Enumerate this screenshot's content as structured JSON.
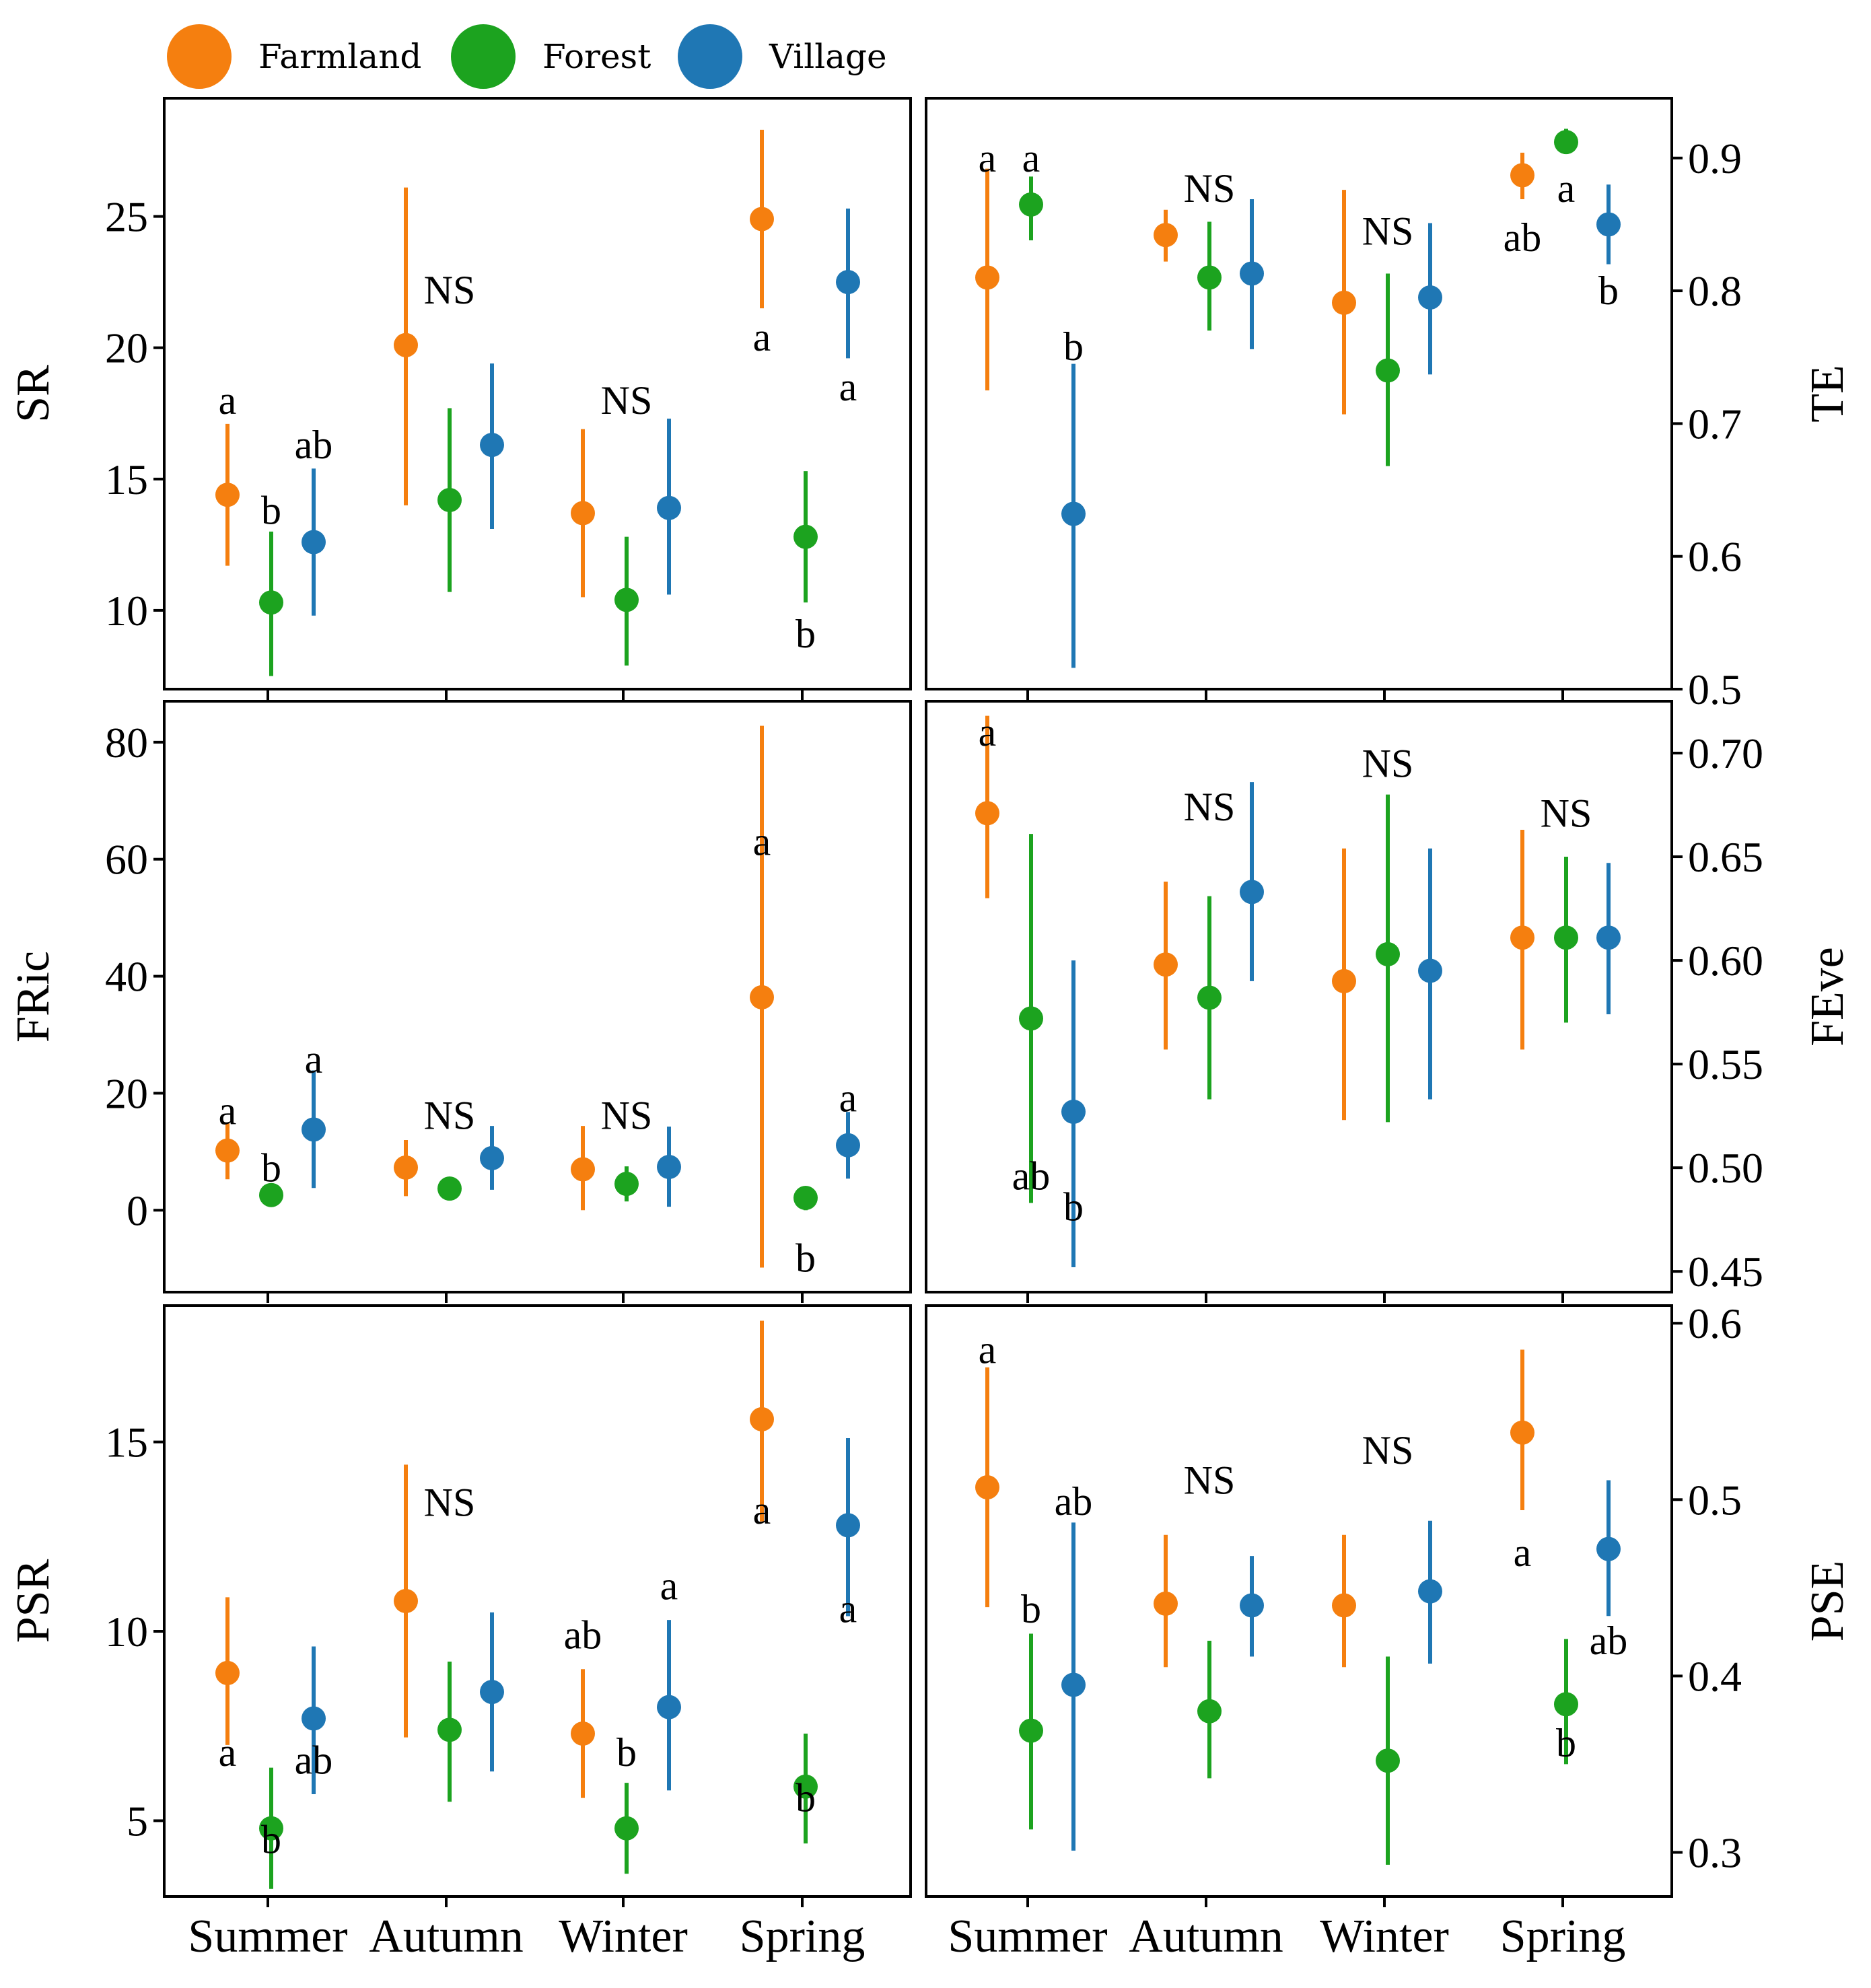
{
  "colors": {
    "Farmland": "#f57f0f",
    "Forest": "#1ca31f",
    "Village": "#1f77b4"
  },
  "legend": [
    "Farmland",
    "Forest",
    "Village"
  ],
  "seasons": [
    "Summer",
    "Autumn",
    "Winter",
    "Spring"
  ],
  "chart_data": [
    {
      "type": "scatter",
      "ylabel": "SR",
      "axis_side": "left",
      "ylim": [
        7,
        29.5
      ],
      "yticks": [
        10,
        15,
        20,
        25
      ],
      "ytick_labels": [
        "10",
        "15",
        "20",
        "25"
      ],
      "series": [
        {
          "name": "Farmland",
          "mean": [
            14.4,
            20.1,
            13.7,
            24.9
          ],
          "low": [
            11.7,
            14.0,
            10.5,
            21.5
          ],
          "high": [
            17.1,
            26.1,
            16.9,
            28.3
          ]
        },
        {
          "name": "Forest",
          "mean": [
            10.3,
            14.2,
            10.4,
            12.8
          ],
          "low": [
            7.5,
            10.7,
            7.9,
            10.3
          ],
          "high": [
            13.0,
            17.7,
            12.8,
            15.3
          ]
        },
        {
          "name": "Village",
          "mean": [
            12.6,
            16.3,
            13.9,
            22.5
          ],
          "low": [
            9.8,
            13.1,
            10.6,
            19.6
          ],
          "high": [
            15.4,
            19.4,
            17.3,
            25.3
          ]
        }
      ],
      "annotations": [
        {
          "text": "a",
          "season": 0,
          "series": 0,
          "y": 18.0
        },
        {
          "text": "b",
          "season": 0,
          "series": 1,
          "y": 13.8
        },
        {
          "text": "ab",
          "season": 0,
          "series": 2,
          "y": 16.3
        },
        {
          "text": "NS",
          "season": 1,
          "series": 1,
          "y": 22.2
        },
        {
          "text": "NS",
          "season": 2,
          "series": 1,
          "y": 18.0
        },
        {
          "text": "a",
          "season": 3,
          "series": 0,
          "y": 20.4
        },
        {
          "text": "b",
          "season": 3,
          "series": 1,
          "y": 9.1
        },
        {
          "text": "a",
          "season": 3,
          "series": 2,
          "y": 18.5
        }
      ]
    },
    {
      "type": "scatter",
      "ylabel": "TE",
      "axis_side": "right",
      "ylim": [
        0.5,
        0.945
      ],
      "yticks": [
        0.5,
        0.6,
        0.7,
        0.8,
        0.9
      ],
      "ytick_labels": [
        "0.5",
        "0.6",
        "0.7",
        "0.8",
        "0.9"
      ],
      "series": [
        {
          "name": "Farmland",
          "mean": [
            0.81,
            0.842,
            0.791,
            0.887
          ],
          "low": [
            0.725,
            0.822,
            0.707,
            0.869
          ],
          "high": [
            0.892,
            0.861,
            0.876,
            0.904
          ]
        },
        {
          "name": "Forest",
          "mean": [
            0.865,
            0.81,
            0.74,
            0.912
          ],
          "low": [
            0.838,
            0.77,
            0.668,
            0.905
          ],
          "high": [
            0.886,
            0.852,
            0.813,
            0.922
          ]
        },
        {
          "name": "Village",
          "mean": [
            0.632,
            0.813,
            0.795,
            0.85
          ],
          "low": [
            0.516,
            0.756,
            0.737,
            0.82
          ],
          "high": [
            0.745,
            0.869,
            0.851,
            0.88
          ]
        }
      ],
      "annotations": [
        {
          "text": "a",
          "season": 0,
          "series": 0,
          "y": 0.9
        },
        {
          "text": "a",
          "season": 0,
          "series": 1,
          "y": 0.9
        },
        {
          "text": "b",
          "season": 0,
          "series": 2,
          "y": 0.758
        },
        {
          "text": "NS",
          "season": 1,
          "series": 1,
          "y": 0.877
        },
        {
          "text": "NS",
          "season": 2,
          "series": 1,
          "y": 0.845
        },
        {
          "text": "ab",
          "season": 3,
          "series": 0,
          "y": 0.84
        },
        {
          "text": "a",
          "season": 3,
          "series": 1,
          "y": 0.877
        },
        {
          "text": "b",
          "season": 3,
          "series": 2,
          "y": 0.8
        }
      ]
    },
    {
      "type": "scatter",
      "ylabel": "FRic",
      "axis_side": "left",
      "ylim": [
        -14,
        87
      ],
      "yticks": [
        0,
        20,
        40,
        60,
        80
      ],
      "ytick_labels": [
        "0",
        "20",
        "40",
        "60",
        "80"
      ],
      "series": [
        {
          "name": "Farmland",
          "mean": [
            10.2,
            7.3,
            7.0,
            36.4
          ],
          "low": [
            5.3,
            2.4,
            0.0,
            -9.8
          ],
          "high": [
            15.0,
            12.0,
            14.4,
            82.8
          ]
        },
        {
          "name": "Forest",
          "mean": [
            2.6,
            3.7,
            4.5,
            2.1
          ],
          "low": [
            1.0,
            2.5,
            1.5,
            0.0
          ],
          "high": [
            4.2,
            4.9,
            7.5,
            4.0
          ]
        },
        {
          "name": "Village",
          "mean": [
            13.8,
            8.9,
            7.4,
            11.1
          ],
          "low": [
            3.8,
            3.5,
            0.6,
            5.4
          ],
          "high": [
            23.9,
            14.4,
            14.3,
            16.8
          ]
        }
      ],
      "annotations": [
        {
          "text": "a",
          "season": 0,
          "series": 0,
          "y": 17.0
        },
        {
          "text": "b",
          "season": 0,
          "series": 1,
          "y": 7.2
        },
        {
          "text": "a",
          "season": 0,
          "series": 2,
          "y": 25.8
        },
        {
          "text": "NS",
          "season": 1,
          "series": 1,
          "y": 16.2
        },
        {
          "text": "NS",
          "season": 2,
          "series": 1,
          "y": 16.2
        },
        {
          "text": "a",
          "season": 3,
          "series": 0,
          "y": 63.0
        },
        {
          "text": "b",
          "season": 3,
          "series": 1,
          "y": -8.2
        },
        {
          "text": "a",
          "season": 3,
          "series": 2,
          "y": 19.2
        }
      ]
    },
    {
      "type": "scatter",
      "ylabel": "FEve",
      "axis_side": "right",
      "ylim": [
        0.44,
        0.725
      ],
      "yticks": [
        0.45,
        0.5,
        0.55,
        0.6,
        0.65,
        0.7
      ],
      "ytick_labels": [
        "0.45",
        "0.50",
        "0.55",
        "0.60",
        "0.65",
        "0.70"
      ],
      "series": [
        {
          "name": "Farmland",
          "mean": [
            0.671,
            0.598,
            0.59,
            0.611
          ],
          "low": [
            0.63,
            0.557,
            0.523,
            0.557
          ],
          "high": [
            0.718,
            0.638,
            0.654,
            0.663
          ]
        },
        {
          "name": "Forest",
          "mean": [
            0.572,
            0.582,
            0.603,
            0.611
          ],
          "low": [
            0.483,
            0.533,
            0.522,
            0.57
          ],
          "high": [
            0.661,
            0.631,
            0.68,
            0.65
          ]
        },
        {
          "name": "Village",
          "mean": [
            0.527,
            0.633,
            0.595,
            0.611
          ],
          "low": [
            0.452,
            0.59,
            0.533,
            0.574
          ],
          "high": [
            0.6,
            0.686,
            0.654,
            0.647
          ]
        }
      ],
      "annotations": [
        {
          "text": "a",
          "season": 0,
          "series": 0,
          "y": 0.71
        },
        {
          "text": "ab",
          "season": 0,
          "series": 1,
          "y": 0.496
        },
        {
          "text": "b",
          "season": 0,
          "series": 2,
          "y": 0.481
        },
        {
          "text": "NS",
          "season": 1,
          "series": 1,
          "y": 0.674
        },
        {
          "text": "NS",
          "season": 2,
          "series": 1,
          "y": 0.695
        },
        {
          "text": "NS",
          "season": 3,
          "series": 1,
          "y": 0.671
        }
      ]
    },
    {
      "type": "scatter",
      "ylabel": "PSR",
      "axis_side": "left",
      "ylim": [
        3,
        18.6
      ],
      "yticks": [
        5,
        10,
        15
      ],
      "ytick_labels": [
        "5",
        "10",
        "15"
      ],
      "series": [
        {
          "name": "Farmland",
          "mean": [
            8.9,
            10.8,
            7.3,
            15.6
          ],
          "low": [
            7.0,
            7.2,
            5.6,
            12.9
          ],
          "high": [
            10.9,
            14.4,
            9.0,
            18.2
          ]
        },
        {
          "name": "Forest",
          "mean": [
            4.8,
            7.4,
            4.8,
            5.9
          ],
          "low": [
            3.2,
            5.5,
            3.6,
            4.4
          ],
          "high": [
            6.4,
            9.2,
            6.0,
            7.3
          ]
        },
        {
          "name": "Village",
          "mean": [
            7.7,
            8.4,
            8.0,
            12.8
          ],
          "low": [
            5.7,
            6.3,
            5.8,
            10.4
          ],
          "high": [
            9.6,
            10.5,
            10.3,
            15.1
          ]
        }
      ],
      "annotations": [
        {
          "text": "a",
          "season": 0,
          "series": 0,
          "y": 6.8
        },
        {
          "text": "b",
          "season": 0,
          "series": 1,
          "y": 4.5
        },
        {
          "text": "ab",
          "season": 0,
          "series": 2,
          "y": 6.6
        },
        {
          "text": "NS",
          "season": 1,
          "series": 1,
          "y": 13.4
        },
        {
          "text": "ab",
          "season": 2,
          "series": 0,
          "y": 9.9
        },
        {
          "text": "b",
          "season": 2,
          "series": 1,
          "y": 6.8
        },
        {
          "text": "a",
          "season": 2,
          "series": 2,
          "y": 11.2
        },
        {
          "text": "a",
          "season": 3,
          "series": 0,
          "y": 13.2
        },
        {
          "text": "b",
          "season": 3,
          "series": 1,
          "y": 5.6
        },
        {
          "text": "a",
          "season": 3,
          "series": 2,
          "y": 10.6
        }
      ]
    },
    {
      "type": "scatter",
      "ylabel": "PSE",
      "axis_side": "right",
      "ylim": [
        0.275,
        0.61
      ],
      "yticks": [
        0.3,
        0.4,
        0.5,
        0.6
      ],
      "ytick_labels": [
        "0.3",
        "0.4",
        "0.5",
        "0.6"
      ],
      "series": [
        {
          "name": "Farmland",
          "mean": [
            0.507,
            0.441,
            0.44,
            0.538
          ],
          "low": [
            0.439,
            0.405,
            0.405,
            0.494
          ],
          "high": [
            0.575,
            0.48,
            0.48,
            0.585
          ]
        },
        {
          "name": "Forest",
          "mean": [
            0.369,
            0.38,
            0.352,
            0.384
          ],
          "low": [
            0.313,
            0.342,
            0.293,
            0.35
          ],
          "high": [
            0.424,
            0.42,
            0.411,
            0.421
          ]
        },
        {
          "name": "Village",
          "mean": [
            0.395,
            0.44,
            0.448,
            0.472
          ],
          "low": [
            0.301,
            0.411,
            0.407,
            0.434
          ],
          "high": [
            0.487,
            0.468,
            0.488,
            0.511
          ]
        }
      ],
      "annotations": [
        {
          "text": "a",
          "season": 0,
          "series": 0,
          "y": 0.585
        },
        {
          "text": "b",
          "season": 0,
          "series": 1,
          "y": 0.438
        },
        {
          "text": "ab",
          "season": 0,
          "series": 2,
          "y": 0.499
        },
        {
          "text": "NS",
          "season": 1,
          "series": 1,
          "y": 0.511
        },
        {
          "text": "NS",
          "season": 2,
          "series": 1,
          "y": 0.528
        },
        {
          "text": "a",
          "season": 3,
          "series": 0,
          "y": 0.47
        },
        {
          "text": "b",
          "season": 3,
          "series": 1,
          "y": 0.362
        },
        {
          "text": "ab",
          "season": 3,
          "series": 2,
          "y": 0.42
        }
      ]
    }
  ]
}
